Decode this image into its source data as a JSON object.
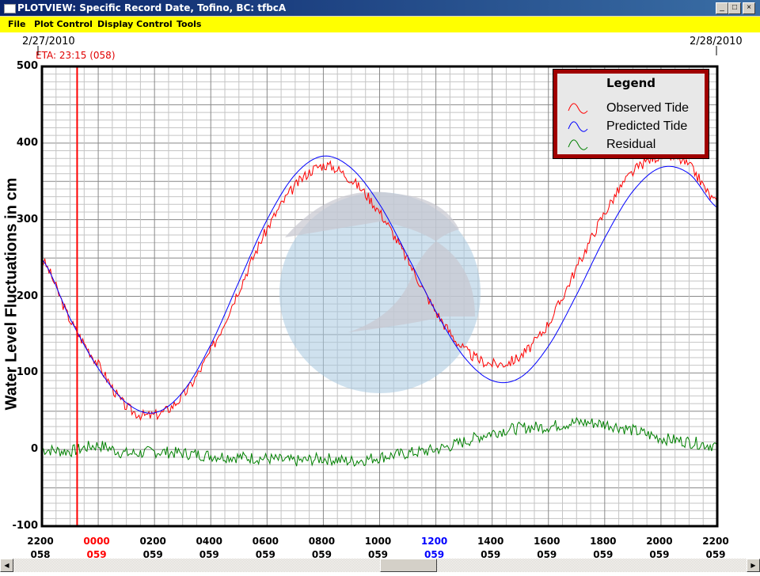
{
  "window": {
    "title": "PLOTVIEW: Specific Record Date, Tofino, BC: tfbcA",
    "minimize": "_",
    "maximize": "□",
    "close": "×"
  },
  "menu": [
    {
      "label": "File"
    },
    {
      "label": "Plot Control"
    },
    {
      "label": "Display Control"
    },
    {
      "label": "Tools"
    }
  ],
  "dates": {
    "start": "2/27/2010",
    "end": "2/28/2010"
  },
  "eta": {
    "label": "ETA: 23:15 (058)",
    "hours_from_start": 1.25,
    "color": "#ff0000"
  },
  "legend": {
    "title": "Legend",
    "items": [
      {
        "label": "Observed Tide",
        "color": "#ff0000"
      },
      {
        "label": "Predicted Tide",
        "color": "#0000ff"
      },
      {
        "label": "Residual",
        "color": "#008000"
      }
    ]
  },
  "chart_data": {
    "type": "line",
    "ylabel": "Water Level Fluctuations in cm",
    "ylim": [
      -100,
      500
    ],
    "yticks": [
      "500",
      "400",
      "300",
      "200",
      "100",
      "0",
      "-100"
    ],
    "xlim_hours": [
      0,
      24
    ],
    "grid": true,
    "legend_position": "top-right",
    "xticks": [
      {
        "time": "2200",
        "day": "058",
        "color": "#000000"
      },
      {
        "time": "0000",
        "day": "059",
        "color": "#ff0000"
      },
      {
        "time": "0200",
        "day": "059",
        "color": "#000000"
      },
      {
        "time": "0400",
        "day": "059",
        "color": "#000000"
      },
      {
        "time": "0600",
        "day": "059",
        "color": "#000000"
      },
      {
        "time": "0800",
        "day": "059",
        "color": "#000000"
      },
      {
        "time": "1000",
        "day": "059",
        "color": "#000000"
      },
      {
        "time": "1200",
        "day": "059",
        "color": "#0000ff"
      },
      {
        "time": "1400",
        "day": "059",
        "color": "#000000"
      },
      {
        "time": "1600",
        "day": "059",
        "color": "#000000"
      },
      {
        "time": "1800",
        "day": "059",
        "color": "#000000"
      },
      {
        "time": "2000",
        "day": "059",
        "color": "#000000"
      },
      {
        "time": "2200",
        "day": "059",
        "color": "#000000"
      }
    ],
    "x_hours": [
      0,
      1,
      2,
      3,
      4,
      5,
      6,
      7,
      8,
      9,
      10,
      11,
      12,
      13,
      14,
      15,
      16,
      17,
      18,
      19,
      20,
      21,
      22,
      23,
      24
    ],
    "series": [
      {
        "name": "Predicted Tide",
        "color": "#0000ff",
        "values": [
          248,
          171,
          106,
          61,
          48,
          75,
          137,
          219,
          300,
          359,
          383,
          367,
          320,
          252,
          180,
          121,
          90,
          94,
          135,
          202,
          276,
          337,
          368,
          360,
          316
        ]
      },
      {
        "name": "Residual",
        "color": "#008000",
        "values": [
          0,
          -2,
          5,
          -5,
          -3,
          -5,
          -8,
          -10,
          -12,
          -15,
          -12,
          -15,
          -10,
          -5,
          0,
          10,
          22,
          28,
          30,
          35,
          33,
          25,
          15,
          10,
          5
        ]
      },
      {
        "name": "Observed Tide",
        "color": "#ff0000",
        "values": [
          248,
          169,
          111,
          56,
          45,
          70,
          129,
          209,
          288,
          344,
          371,
          352,
          310,
          247,
          180,
          131,
          112,
          122,
          165,
          237,
          309,
          362,
          383,
          370,
          321
        ]
      }
    ]
  }
}
